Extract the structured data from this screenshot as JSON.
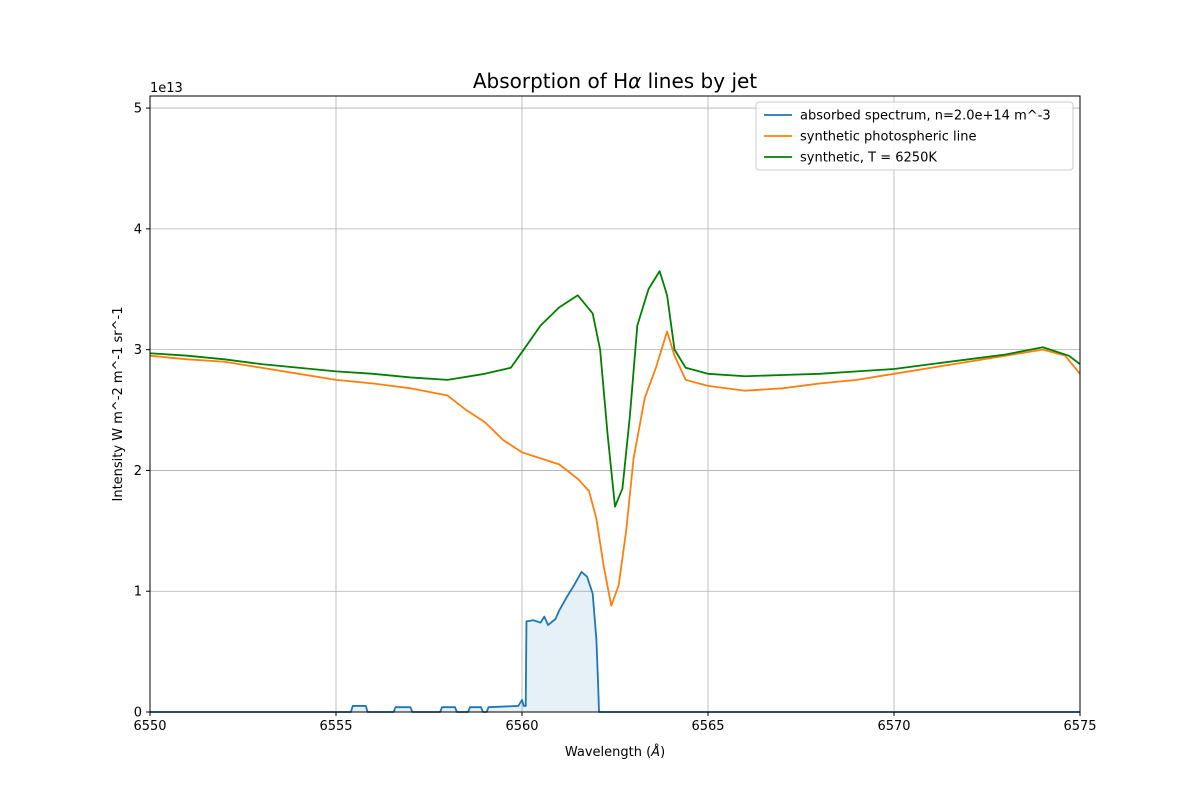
{
  "chart_data": {
    "type": "line",
    "title_prefix": "Absorption of H",
    "title_symbol": "α",
    "title_suffix": " lines by jet",
    "xlabel_prefix": "Wavelength (",
    "xlabel_symbol": "Å",
    "xlabel_suffix": ")",
    "ylabel": "Intensity W m^-2 m^-1 sr^-1",
    "y_offset_label": "1e13",
    "xlim": [
      6550,
      6575
    ],
    "ylim": [
      0,
      5.1
    ],
    "x_ticks": [
      6550,
      6555,
      6560,
      6565,
      6570,
      6575
    ],
    "y_ticks": [
      0,
      1,
      2,
      3,
      4,
      5
    ],
    "grid": true,
    "legend_position": "top-right",
    "series": [
      {
        "name": "absorbed spectrum, n=2.0e+14 m^-3",
        "color": "#1f77b4",
        "fill": true,
        "points": [
          [
            6550,
            0
          ],
          [
            6555.4,
            0
          ],
          [
            6555.45,
            0.05
          ],
          [
            6555.8,
            0.05
          ],
          [
            6555.85,
            0
          ],
          [
            6556.55,
            0
          ],
          [
            6556.6,
            0.04
          ],
          [
            6557.0,
            0.04
          ],
          [
            6557.05,
            0
          ],
          [
            6557.8,
            0
          ],
          [
            6557.85,
            0.04
          ],
          [
            6558.2,
            0.04
          ],
          [
            6558.25,
            0
          ],
          [
            6558.55,
            0
          ],
          [
            6558.6,
            0.04
          ],
          [
            6558.9,
            0.04
          ],
          [
            6558.95,
            0
          ],
          [
            6559.05,
            0
          ],
          [
            6559.1,
            0.04
          ],
          [
            6559.9,
            0.05
          ],
          [
            6560.0,
            0.1
          ],
          [
            6560.05,
            0.05
          ],
          [
            6560.1,
            0.05
          ],
          [
            6560.12,
            0.75
          ],
          [
            6560.3,
            0.76
          ],
          [
            6560.5,
            0.74
          ],
          [
            6560.6,
            0.79
          ],
          [
            6560.7,
            0.72
          ],
          [
            6560.9,
            0.77
          ],
          [
            6561.0,
            0.84
          ],
          [
            6561.2,
            0.95
          ],
          [
            6561.4,
            1.05
          ],
          [
            6561.6,
            1.16
          ],
          [
            6561.75,
            1.12
          ],
          [
            6561.9,
            0.98
          ],
          [
            6562.0,
            0.6
          ],
          [
            6562.05,
            0.2
          ],
          [
            6562.07,
            0
          ],
          [
            6575,
            0
          ]
        ]
      },
      {
        "name": "synthetic photospheric line",
        "color": "#ff7f0e",
        "fill": false,
        "points": [
          [
            6550,
            2.95
          ],
          [
            6551,
            2.92
          ],
          [
            6552,
            2.9
          ],
          [
            6553,
            2.85
          ],
          [
            6554,
            2.8
          ],
          [
            6555,
            2.75
          ],
          [
            6556,
            2.72
          ],
          [
            6557,
            2.68
          ],
          [
            6558,
            2.62
          ],
          [
            6558.5,
            2.5
          ],
          [
            6559,
            2.4
          ],
          [
            6559.5,
            2.25
          ],
          [
            6560,
            2.15
          ],
          [
            6560.5,
            2.1
          ],
          [
            6561,
            2.05
          ],
          [
            6561.5,
            1.93
          ],
          [
            6561.8,
            1.83
          ],
          [
            6562.0,
            1.6
          ],
          [
            6562.2,
            1.2
          ],
          [
            6562.4,
            0.88
          ],
          [
            6562.6,
            1.05
          ],
          [
            6562.8,
            1.5
          ],
          [
            6563.0,
            2.1
          ],
          [
            6563.3,
            2.6
          ],
          [
            6563.6,
            2.85
          ],
          [
            6563.9,
            3.15
          ],
          [
            6564.1,
            2.95
          ],
          [
            6564.4,
            2.75
          ],
          [
            6565,
            2.7
          ],
          [
            6566,
            2.66
          ],
          [
            6567,
            2.68
          ],
          [
            6568,
            2.72
          ],
          [
            6569,
            2.75
          ],
          [
            6570,
            2.8
          ],
          [
            6571,
            2.85
          ],
          [
            6572,
            2.9
          ],
          [
            6573,
            2.95
          ],
          [
            6574,
            3.0
          ],
          [
            6574.6,
            2.95
          ],
          [
            6575,
            2.8
          ]
        ]
      },
      {
        "name": "synthetic, T = 6250K",
        "color": "#008000",
        "fill": false,
        "points": [
          [
            6550,
            2.97
          ],
          [
            6551,
            2.95
          ],
          [
            6552,
            2.92
          ],
          [
            6553,
            2.88
          ],
          [
            6554,
            2.85
          ],
          [
            6555,
            2.82
          ],
          [
            6556,
            2.8
          ],
          [
            6557,
            2.77
          ],
          [
            6558,
            2.75
          ],
          [
            6559,
            2.8
          ],
          [
            6559.7,
            2.85
          ],
          [
            6560,
            2.98
          ],
          [
            6560.5,
            3.2
          ],
          [
            6561,
            3.35
          ],
          [
            6561.5,
            3.45
          ],
          [
            6561.9,
            3.3
          ],
          [
            6562.1,
            3.0
          ],
          [
            6562.3,
            2.3
          ],
          [
            6562.5,
            1.7
          ],
          [
            6562.7,
            1.85
          ],
          [
            6562.9,
            2.45
          ],
          [
            6563.1,
            3.2
          ],
          [
            6563.4,
            3.5
          ],
          [
            6563.7,
            3.65
          ],
          [
            6563.9,
            3.45
          ],
          [
            6564.1,
            3.0
          ],
          [
            6564.4,
            2.85
          ],
          [
            6565,
            2.8
          ],
          [
            6566,
            2.78
          ],
          [
            6567,
            2.79
          ],
          [
            6568,
            2.8
          ],
          [
            6569,
            2.82
          ],
          [
            6570,
            2.84
          ],
          [
            6571,
            2.88
          ],
          [
            6572,
            2.92
          ],
          [
            6573,
            2.96
          ],
          [
            6574,
            3.02
          ],
          [
            6574.7,
            2.95
          ],
          [
            6575,
            2.88
          ]
        ]
      }
    ]
  }
}
